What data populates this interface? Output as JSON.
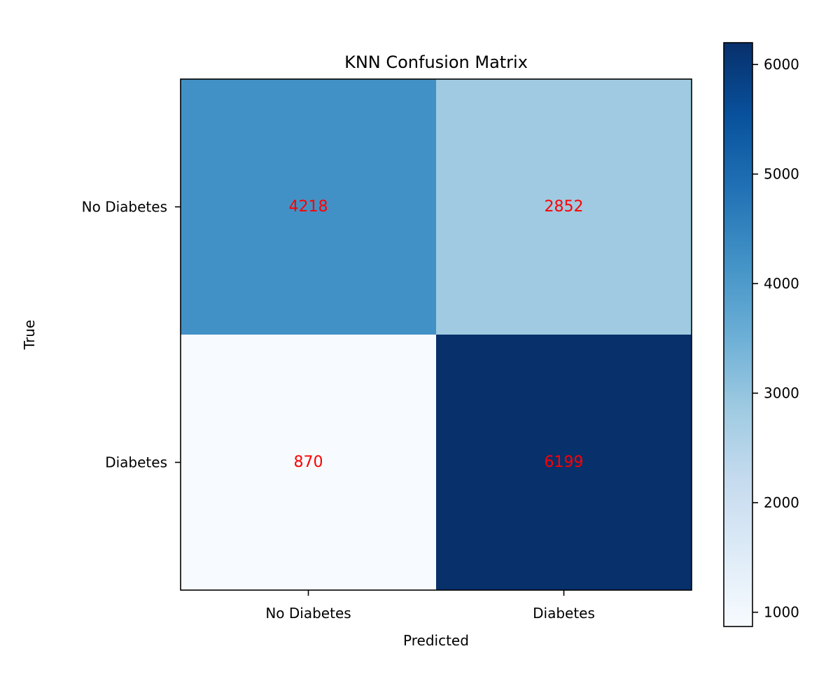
{
  "chart_data": {
    "type": "heatmap",
    "title": "KNN Confusion Matrix",
    "xlabel": "Predicted",
    "ylabel": "True",
    "x_categories": [
      "No Diabetes",
      "Diabetes"
    ],
    "y_categories": [
      "No Diabetes",
      "Diabetes"
    ],
    "values": [
      [
        4218,
        2852
      ],
      [
        870,
        6199
      ]
    ],
    "colormap": "Blues",
    "value_label_color": "#ff0000",
    "colorbar": {
      "min": 870,
      "max": 6199,
      "ticks": [
        1000,
        2000,
        3000,
        4000,
        5000,
        6000
      ],
      "tick_labels": [
        "1000",
        "2000",
        "3000",
        "4000",
        "5000",
        "6000"
      ]
    },
    "grid": false
  }
}
